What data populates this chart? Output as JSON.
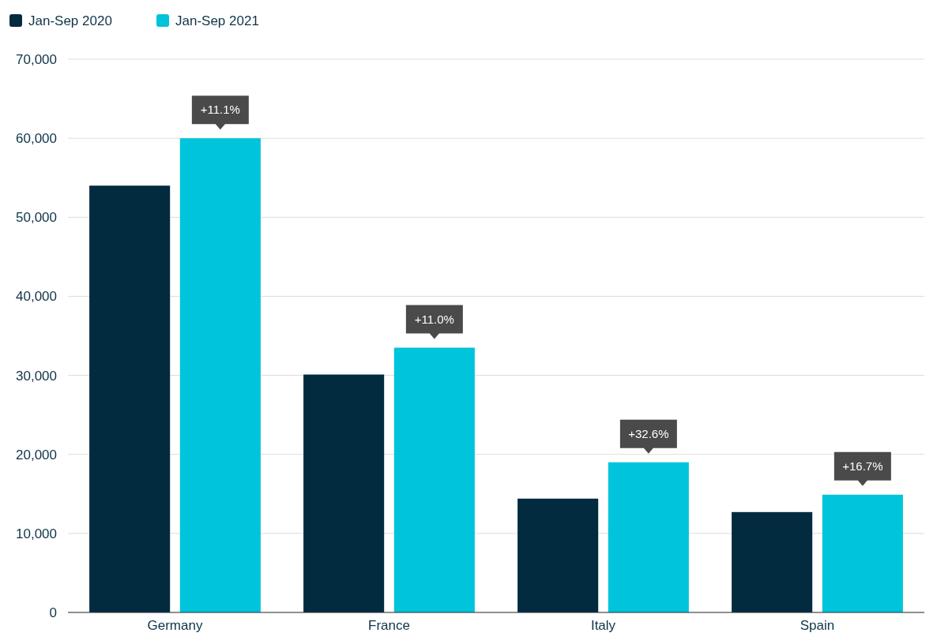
{
  "chart_data": {
    "type": "bar",
    "categories": [
      "Germany",
      "France",
      "Italy",
      "Spain"
    ],
    "series": [
      {
        "name": "Jan-Sep 2020",
        "color": "#022b40",
        "values": [
          54000,
          30100,
          14400,
          12700
        ]
      },
      {
        "name": "Jan-Sep 2021",
        "color": "#00c4dc",
        "values": [
          60000,
          33500,
          19000,
          14900
        ]
      }
    ],
    "ylim": [
      0,
      70000
    ],
    "yticks": [
      {
        "value": 0,
        "label": "0"
      },
      {
        "value": 10000,
        "label": "10,000"
      },
      {
        "value": 20000,
        "label": "20,000"
      },
      {
        "value": 30000,
        "label": "30,000"
      },
      {
        "value": 40000,
        "label": "40,000"
      },
      {
        "value": 50000,
        "label": "50,000"
      },
      {
        "value": 60000,
        "label": "60,000"
      },
      {
        "value": 70000,
        "label": "70,000"
      }
    ],
    "grid": "y",
    "legend": "top left",
    "annotations": [
      "+11.1%",
      "+11.0%",
      "+32.6%",
      "+16.7%"
    ]
  }
}
